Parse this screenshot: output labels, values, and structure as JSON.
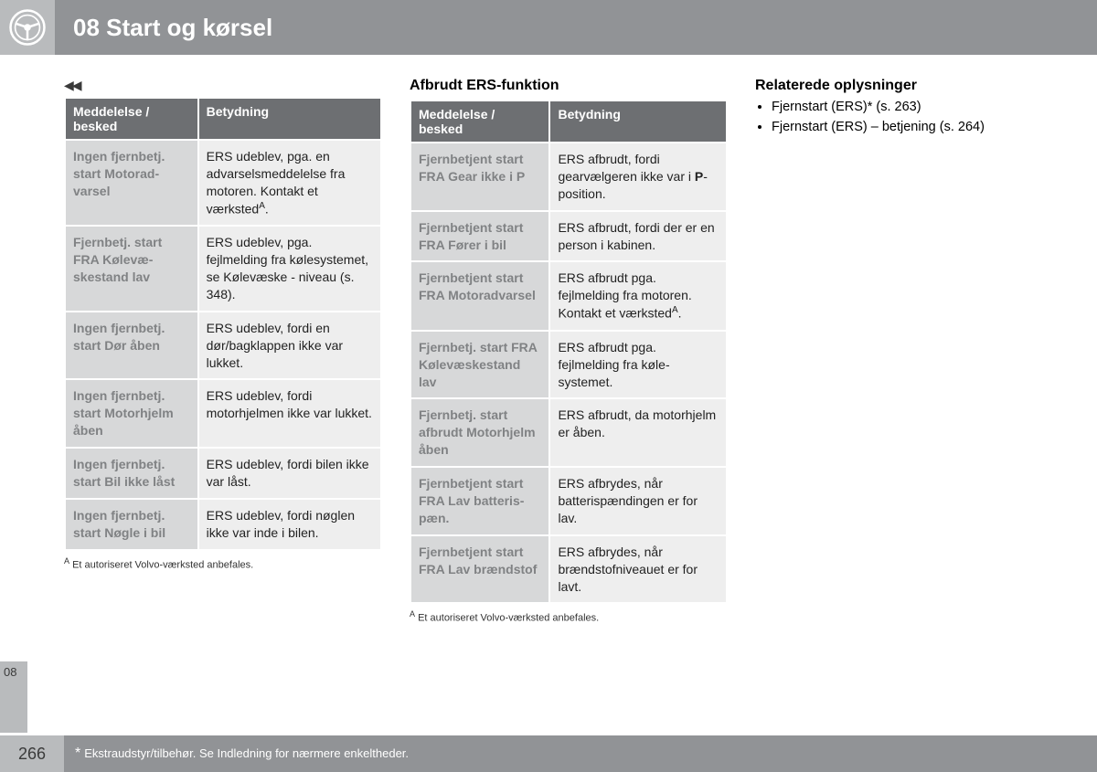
{
  "header": {
    "chapter_title": "08 Start og kørsel"
  },
  "side_tab": "08",
  "page_number": "266",
  "footer_note": "Ekstraudstyr/tilbehør. Se Indledning for nærmere enkeltheder.",
  "continuation_marker": "◀◀",
  "table1": {
    "columns": [
      "Meddelelse / besked",
      "Betydning"
    ],
    "rows": [
      {
        "msg": "Ingen fjernbetj. start Motorad­varsel",
        "meaning_html": "ERS udeblev, pga. en advarselsmeddelelse fra motoren. Kontakt et værksted<sup class='a'>A</sup>."
      },
      {
        "msg": "Fjernbetj. start FRA Kølevæ­skestand lav",
        "meaning_html": "ERS udeblev, pga. fejlmelding fra kølesy­stemet, se Kølevæske - niveau (s. 348)."
      },
      {
        "msg": "Ingen fjernbetj. start Dør åben",
        "meaning_html": "ERS udeblev, fordi en dør/bagklappen ikke var lukket."
      },
      {
        "msg": "Ingen fjernbetj. start Motor­hjelm åben",
        "meaning_html": "ERS udeblev, fordi motorhjelmen ikke var lukket."
      },
      {
        "msg": "Ingen fjernbetj. start Bil ikke låst",
        "meaning_html": "ERS udeblev, fordi bilen ikke var låst."
      },
      {
        "msg": "Ingen fjernbetj. start Nøgle i bil",
        "meaning_html": "ERS udeblev, fordi nøglen ikke var inde i bilen."
      }
    ],
    "footnote": "Et autoriseret Volvo-værksted anbefales."
  },
  "section2_title": "Afbrudt ERS-funktion",
  "table2": {
    "columns": [
      "Meddelelse / besked",
      "Betydning"
    ],
    "rows": [
      {
        "msg": "Fjernbetjent start FRA Gear ikke i P",
        "meaning_html": "ERS afbrudt, fordi gearvælgeren ikke var i <b>P</b>-position."
      },
      {
        "msg": "Fjernbetjent start FRA Fører i bil",
        "meaning_html": "ERS afbrudt, fordi der er en person i kabinen."
      },
      {
        "msg": "Fjernbetjent start FRA Motoradvar­sel",
        "meaning_html": "ERS afbrudt pga. fejlmelding fra moto­ren. Kontakt et værk­sted<sup class='a'>A</sup>."
      },
      {
        "msg": "Fjernbetj. start FRA Kølevæske­stand lav",
        "meaning_html": "ERS afbrudt pga. fejlmelding fra køle­systemet."
      },
      {
        "msg": "Fjernbetj. start afbrudt Motor­hjelm åben",
        "meaning_html": "ERS afbrudt, da motorhjelm er åben."
      },
      {
        "msg": "Fjernbetjent start FRA Lav batteris­pæn.",
        "meaning_html": "ERS afbrydes, når batterispændingen er for lav."
      },
      {
        "msg": "Fjernbetjent start FRA Lav brænd­stof",
        "meaning_html": "ERS afbrydes, når brændstofniveauet er for lavt."
      }
    ],
    "footnote": "Et autoriseret Volvo-værksted anbefales."
  },
  "related": {
    "title": "Relaterede oplysninger",
    "items": [
      "Fjernstart (ERS)* (s. 263)",
      "Fjernstart (ERS) – betjening (s. 264)"
    ]
  }
}
